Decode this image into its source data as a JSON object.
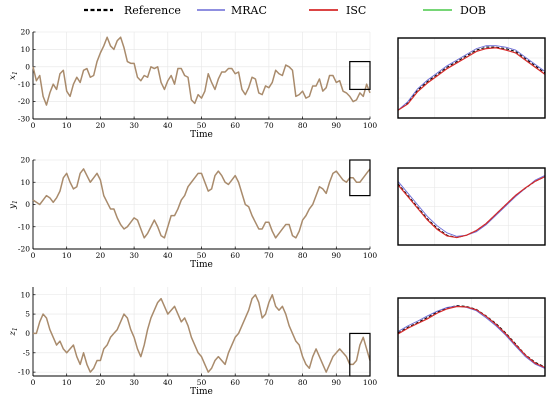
{
  "legend": [
    {
      "label": "Reference",
      "color": "#000000",
      "dash": "4,2.5"
    },
    {
      "label": "MRAC",
      "color": "#6a6ad6",
      "dash": ""
    },
    {
      "label": "ISC",
      "color": "#d62a2a",
      "dash": ""
    },
    {
      "label": "DOB",
      "color": "#48c848",
      "dash": ""
    }
  ],
  "colors": {
    "tracked_curve": "#a98b6c",
    "axes": "#000000",
    "grid": "#e6e6e6"
  },
  "chart_data": [
    {
      "type": "line",
      "xlabel": "Time",
      "ylabel": "x",
      "ylabel_sub": "1",
      "xlim": [
        0,
        100
      ],
      "ylim": [
        -30,
        20
      ],
      "xticks": [
        0,
        10,
        20,
        30,
        40,
        50,
        60,
        70,
        80,
        90,
        100
      ],
      "yticks": [
        20,
        10,
        0,
        -10,
        -20,
        -30
      ],
      "grid": true,
      "zoom_window": {
        "x": [
          94,
          100
        ],
        "y": [
          -13,
          3
        ]
      },
      "series": [
        {
          "x": [
            0,
            1,
            2,
            3,
            4,
            5,
            6,
            7,
            8,
            9,
            10,
            11,
            12,
            13,
            14,
            15,
            16,
            17,
            18,
            19,
            20,
            21,
            22,
            23,
            24,
            25,
            26,
            27,
            28,
            29,
            30,
            31,
            32,
            33,
            34,
            35,
            36,
            37,
            38,
            39,
            40,
            41,
            42,
            43,
            44,
            45,
            46,
            47,
            48,
            49,
            50,
            51,
            52,
            53,
            54,
            55,
            56,
            57,
            58,
            59,
            60,
            61,
            62,
            63,
            64,
            65,
            66,
            67,
            68,
            69,
            70,
            71,
            72,
            73,
            74,
            75,
            76,
            77,
            78,
            79,
            80,
            81,
            82,
            83,
            84,
            85,
            86,
            87,
            88,
            89,
            90,
            91,
            92,
            93,
            94,
            95,
            96,
            97,
            98,
            99,
            100
          ],
          "y": [
            0,
            -8,
            -5,
            -17,
            -22,
            -15,
            -10,
            -13,
            -4,
            -2,
            -14,
            -17,
            -10,
            -6,
            -9,
            -2,
            -1,
            -6,
            -5,
            3,
            8,
            12,
            17,
            12,
            10,
            15,
            17,
            11,
            3,
            2,
            2,
            -6,
            -8,
            -5,
            -6,
            0,
            -1,
            0,
            -9,
            -13,
            -8,
            -5,
            -10,
            -1,
            -1,
            -5,
            -6,
            -19,
            -21,
            -16,
            -18,
            -14,
            -4,
            -9,
            -13,
            -7,
            -3,
            -3,
            -1,
            -1,
            -4,
            -3,
            -13,
            -16,
            -12,
            -6,
            -7,
            -15,
            -16,
            -11,
            -12,
            -9,
            -2,
            -4,
            -5,
            1,
            0,
            -2,
            -17,
            -16,
            -14,
            -18,
            -17,
            -11,
            -11,
            -7,
            -14,
            -12,
            -5,
            -5,
            -9,
            -8,
            -14,
            -15,
            -17,
            -20,
            -19,
            -15,
            -17,
            -10,
            -15
          ]
        }
      ],
      "zoom": {
        "series": [
          {
            "name": "Reference",
            "y": [
              -10,
              -7.5,
              -3,
              0,
              2.5,
              5,
              7,
              9,
              11,
              12,
              12,
              11.5,
              10.5,
              8,
              5.5,
              3
            ]
          },
          {
            "name": "MRAC",
            "y": [
              -10,
              -7,
              -2.5,
              0.5,
              3,
              5.5,
              7.5,
              9.5,
              11.5,
              12.5,
              12.5,
              12,
              11,
              8.5,
              6,
              3.5
            ]
          },
          {
            "name": "ISC",
            "y": [
              -10,
              -7.8,
              -3.5,
              -0.5,
              2,
              4.5,
              6.5,
              8.5,
              10.5,
              11.5,
              11.8,
              11,
              10,
              7.5,
              5,
              2.5
            ]
          }
        ]
      }
    },
    {
      "type": "line",
      "xlabel": "Time",
      "ylabel": "y",
      "ylabel_sub": "1",
      "xlim": [
        0,
        100
      ],
      "ylim": [
        -20,
        20
      ],
      "xticks": [
        0,
        10,
        20,
        30,
        40,
        50,
        60,
        70,
        80,
        90,
        100
      ],
      "yticks": [
        20,
        10,
        0,
        -10,
        -20
      ],
      "grid": true,
      "zoom_window": {
        "x": [
          94,
          100
        ],
        "y": [
          4,
          20
        ]
      },
      "series": [
        {
          "x": [
            0,
            1,
            2,
            3,
            4,
            5,
            6,
            7,
            8,
            9,
            10,
            11,
            12,
            13,
            14,
            15,
            16,
            17,
            18,
            19,
            20,
            21,
            22,
            23,
            24,
            25,
            26,
            27,
            28,
            29,
            30,
            31,
            32,
            33,
            34,
            35,
            36,
            37,
            38,
            39,
            40,
            41,
            42,
            43,
            44,
            45,
            46,
            47,
            48,
            49,
            50,
            51,
            52,
            53,
            54,
            55,
            56,
            57,
            58,
            59,
            60,
            61,
            62,
            63,
            64,
            65,
            66,
            67,
            68,
            69,
            70,
            71,
            72,
            73,
            74,
            75,
            76,
            77,
            78,
            79,
            80,
            81,
            82,
            83,
            84,
            85,
            86,
            87,
            88,
            89,
            90,
            91,
            92,
            93,
            94,
            95,
            96,
            97,
            98,
            99,
            100
          ],
          "y": [
            2,
            1,
            0,
            2,
            4,
            3,
            1,
            3,
            6,
            12,
            14,
            10,
            7,
            8,
            14,
            16,
            13,
            10,
            12,
            14,
            11,
            4,
            1,
            -2,
            -2,
            -6,
            -9,
            -11,
            -10,
            -8,
            -6,
            -7,
            -11,
            -15,
            -13,
            -10,
            -7,
            -10,
            -14,
            -15,
            -10,
            -5,
            -5,
            -2,
            2,
            4,
            8,
            10,
            12,
            14,
            14,
            10,
            6,
            7,
            13,
            15,
            13,
            10,
            9,
            11,
            13,
            10,
            5,
            0,
            -1,
            -5,
            -8,
            -11,
            -11,
            -8,
            -8,
            -12,
            -15,
            -13,
            -11,
            -9,
            -9,
            -14,
            -15,
            -12,
            -7,
            -5,
            -2,
            0,
            4,
            8,
            7,
            5,
            10,
            14,
            15,
            13,
            11,
            10,
            12,
            12,
            10,
            10,
            12,
            14,
            16
          ]
        }
      ],
      "zoom": {
        "series": [
          {
            "name": "Reference",
            "y": [
              15,
              10,
              5,
              0,
              -4,
              -7,
              -8,
              -7,
              -5,
              -2,
              2,
              6,
              10,
              13,
              16,
              18
            ]
          },
          {
            "name": "MRAC",
            "y": [
              16,
              11,
              6,
              1,
              -3,
              -6,
              -7.5,
              -7,
              -5.5,
              -2.5,
              1.5,
              5.5,
              9.5,
              13,
              16.5,
              18.5
            ]
          },
          {
            "name": "ISC",
            "y": [
              14.5,
              9.5,
              4.5,
              -0.5,
              -4.5,
              -7.3,
              -8,
              -7,
              -5,
              -2,
              2,
              6,
              10,
              13.2,
              16,
              18
            ]
          }
        ]
      }
    },
    {
      "type": "line",
      "xlabel": "Time",
      "ylabel": "z",
      "ylabel_sub": "1",
      "xlim": [
        0,
        100
      ],
      "ylim": [
        -11,
        12
      ],
      "xticks": [
        0,
        10,
        20,
        30,
        40,
        50,
        60,
        70,
        80,
        90,
        100
      ],
      "yticks": [
        10,
        5,
        0,
        -5,
        -10
      ],
      "grid": true,
      "zoom_window": {
        "x": [
          94,
          100
        ],
        "y": [
          -11,
          0
        ]
      },
      "series": [
        {
          "x": [
            0,
            1,
            2,
            3,
            4,
            5,
            6,
            7,
            8,
            9,
            10,
            11,
            12,
            13,
            14,
            15,
            16,
            17,
            18,
            19,
            20,
            21,
            22,
            23,
            24,
            25,
            26,
            27,
            28,
            29,
            30,
            31,
            32,
            33,
            34,
            35,
            36,
            37,
            38,
            39,
            40,
            41,
            42,
            43,
            44,
            45,
            46,
            47,
            48,
            49,
            50,
            51,
            52,
            53,
            54,
            55,
            56,
            57,
            58,
            59,
            60,
            61,
            62,
            63,
            64,
            65,
            66,
            67,
            68,
            69,
            70,
            71,
            72,
            73,
            74,
            75,
            76,
            77,
            78,
            79,
            80,
            81,
            82,
            83,
            84,
            85,
            86,
            87,
            88,
            89,
            90,
            91,
            92,
            93,
            94,
            95,
            96,
            97,
            98,
            99,
            100
          ],
          "y": [
            0,
            0,
            3,
            5,
            4,
            1,
            -1,
            -3,
            -2,
            -4,
            -5,
            -4,
            -3,
            -6,
            -8,
            -5,
            -8,
            -10,
            -9,
            -7,
            -7,
            -4,
            -3,
            -1,
            0,
            1,
            3,
            5,
            4,
            1,
            -1,
            -4,
            -6,
            -3,
            1,
            4,
            6,
            8,
            9,
            7,
            5,
            6,
            7,
            5,
            3,
            4,
            2,
            -1,
            -3,
            -5,
            -6,
            -8,
            -10,
            -9,
            -7,
            -6,
            -7,
            -8,
            -5,
            -3,
            -1,
            0,
            2,
            4,
            6,
            9,
            10,
            8,
            4,
            5,
            8,
            10,
            7,
            6,
            7,
            5,
            2,
            0,
            -2,
            -3,
            -6,
            -8,
            -9,
            -6,
            -4,
            -6,
            -8,
            -10,
            -8,
            -6,
            -5,
            -4,
            -5,
            -6,
            -8,
            -8,
            -7,
            -3,
            -1,
            -4,
            -7
          ]
        }
      ],
      "zoom": {
        "series": [
          {
            "name": "Reference",
            "y": [
              -2,
              -0.8,
              0.2,
              1.3,
              2.4,
              3.3,
              3.8,
              3.6,
              3,
              1.6,
              0,
              -2,
              -4.3,
              -6.6,
              -8.2,
              -9.2
            ]
          },
          {
            "name": "MRAC",
            "y": [
              -1.7,
              -0.5,
              0.5,
              1.6,
              2.6,
              3.4,
              3.7,
              3.4,
              2.7,
              1.2,
              -0.5,
              -2.5,
              -4.8,
              -7,
              -8.6,
              -9.5
            ]
          },
          {
            "name": "ISC",
            "y": [
              -2.2,
              -1,
              0,
              1,
              2.2,
              3.1,
              3.6,
              3.5,
              2.9,
              1.5,
              -0.2,
              -2.2,
              -4.5,
              -6.7,
              -8.4,
              -9.3
            ]
          }
        ]
      }
    }
  ]
}
